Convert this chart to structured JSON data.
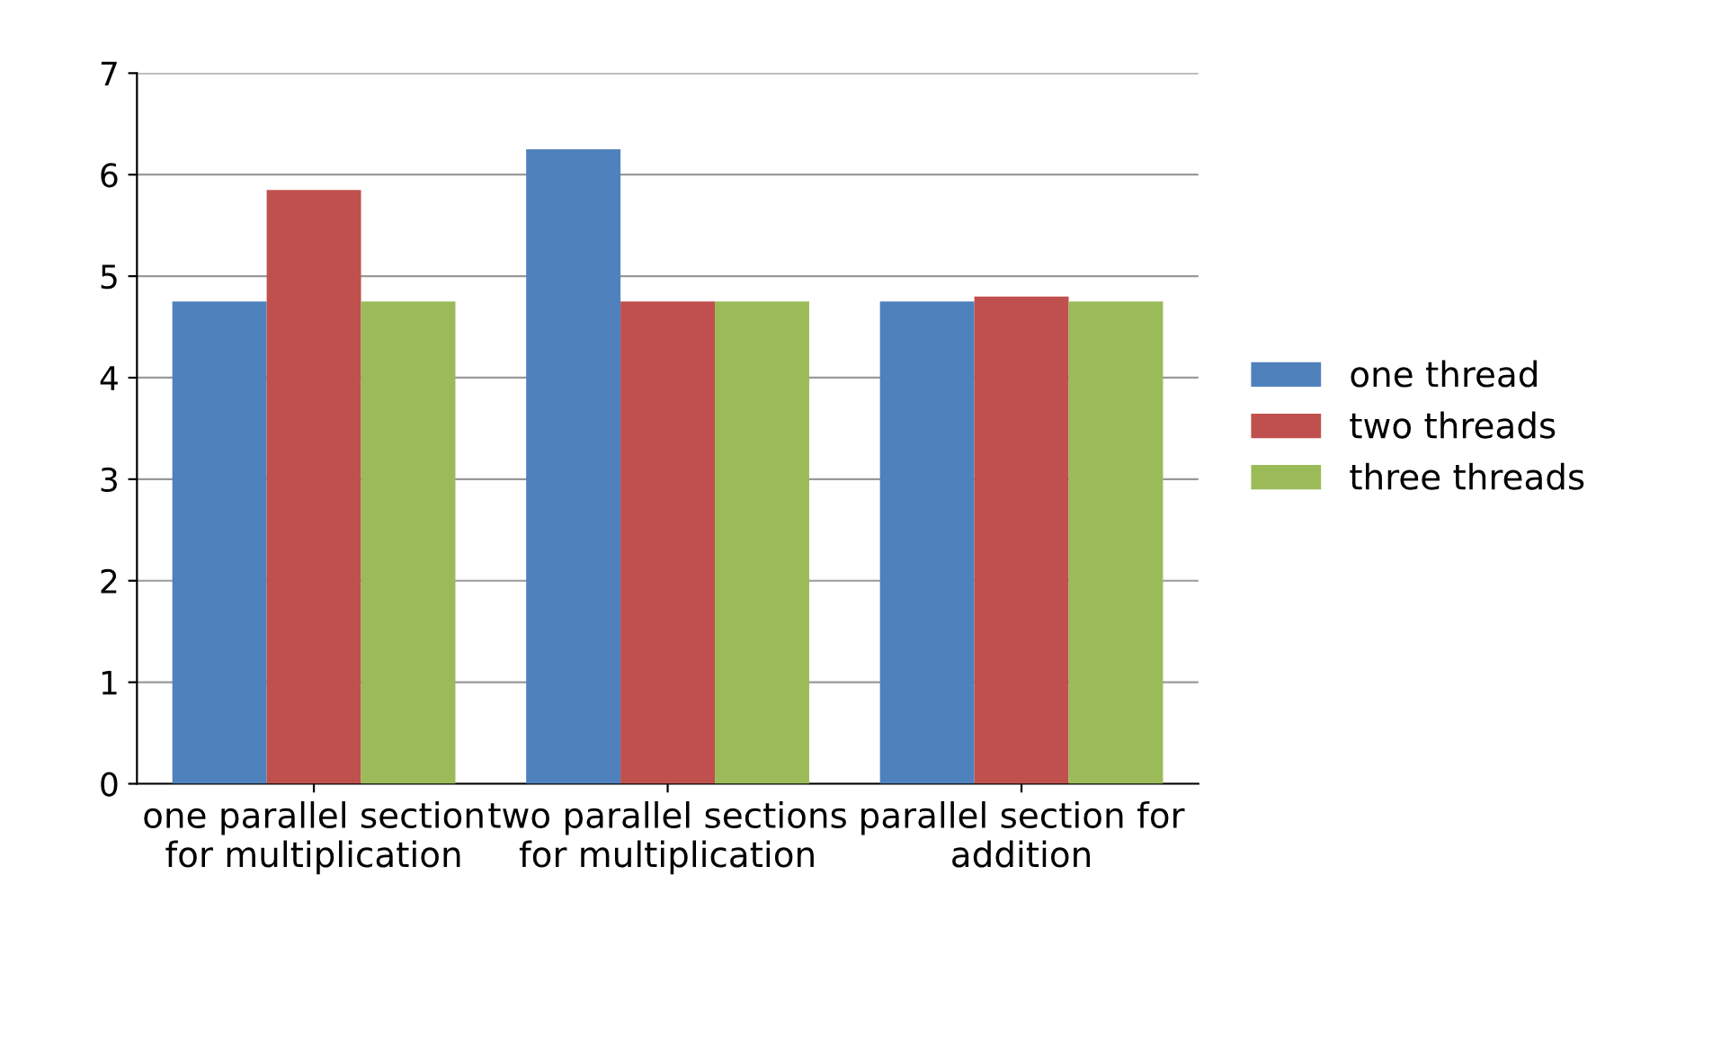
{
  "chart_data": {
    "type": "bar",
    "categories": [
      "one parallel section for multiplication",
      "two parallel sections for multiplication",
      "parallel section for addition"
    ],
    "series": [
      {
        "name": "one thread",
        "color": "#4f81bd",
        "values": [
          4.75,
          6.25,
          4.75
        ]
      },
      {
        "name": "two threads",
        "color": "#c0504d",
        "values": [
          5.85,
          4.75,
          4.8
        ]
      },
      {
        "name": "three threads",
        "color": "#9bbb59",
        "values": [
          4.75,
          4.75,
          4.75
        ]
      }
    ],
    "ylim": [
      0,
      7
    ],
    "yticks": [
      0,
      1,
      2,
      3,
      4,
      5,
      6,
      7
    ],
    "grid": "y",
    "legend": "right"
  }
}
